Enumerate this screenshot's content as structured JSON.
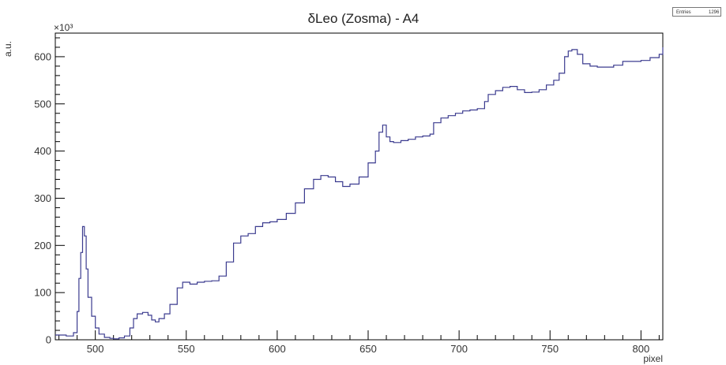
{
  "chart_data": {
    "type": "line",
    "title": "δLeo (Zosma) - A4",
    "xlabel": "pixel",
    "ylabel": "a.u.",
    "y_exponent_label": "×10³",
    "xlim": [
      478,
      812
    ],
    "ylim": [
      0,
      650
    ],
    "x_ticks": [
      500,
      550,
      600,
      650,
      700,
      750,
      800
    ],
    "y_ticks": [
      0,
      100,
      200,
      300,
      400,
      500,
      600
    ],
    "grid": false,
    "legend": "none",
    "line_color": "#3b3b8f",
    "stats": {
      "label": "Entries",
      "value": "1296"
    },
    "series": [
      {
        "x": [
          478,
          484,
          488,
          490,
          491,
          492,
          493,
          494,
          495,
          496,
          498,
          500,
          502,
          505,
          508,
          510,
          513,
          516,
          519,
          521,
          523,
          526,
          529,
          531,
          533,
          535,
          538,
          541,
          545,
          548,
          552,
          556,
          560,
          564,
          568,
          572,
          576,
          580,
          584,
          588,
          592,
          596,
          600,
          605,
          610,
          615,
          620,
          624,
          628,
          632,
          636,
          640,
          645,
          650,
          654,
          656,
          658,
          660,
          662,
          664,
          668,
          672,
          676,
          680,
          684,
          686,
          690,
          694,
          698,
          702,
          706,
          710,
          714,
          716,
          720,
          724,
          728,
          732,
          736,
          740,
          744,
          748,
          752,
          755,
          758,
          760,
          762,
          765,
          768,
          772,
          776,
          780,
          785,
          790,
          795,
          800,
          805,
          810,
          812
        ],
        "y": [
          10,
          8,
          15,
          60,
          130,
          185,
          240,
          220,
          150,
          90,
          50,
          25,
          12,
          5,
          3,
          2,
          4,
          8,
          25,
          45,
          55,
          58,
          52,
          42,
          38,
          45,
          55,
          75,
          110,
          122,
          118,
          122,
          124,
          125,
          135,
          165,
          205,
          220,
          225,
          240,
          248,
          250,
          255,
          268,
          290,
          320,
          340,
          348,
          345,
          335,
          325,
          330,
          345,
          375,
          400,
          440,
          455,
          430,
          420,
          418,
          422,
          425,
          430,
          432,
          436,
          460,
          470,
          475,
          480,
          485,
          487,
          490,
          505,
          520,
          528,
          535,
          537,
          530,
          524,
          525,
          530,
          540,
          550,
          565,
          600,
          612,
          615,
          605,
          585,
          580,
          578,
          578,
          582,
          590,
          590,
          592,
          598,
          605,
          620
        ]
      }
    ]
  }
}
